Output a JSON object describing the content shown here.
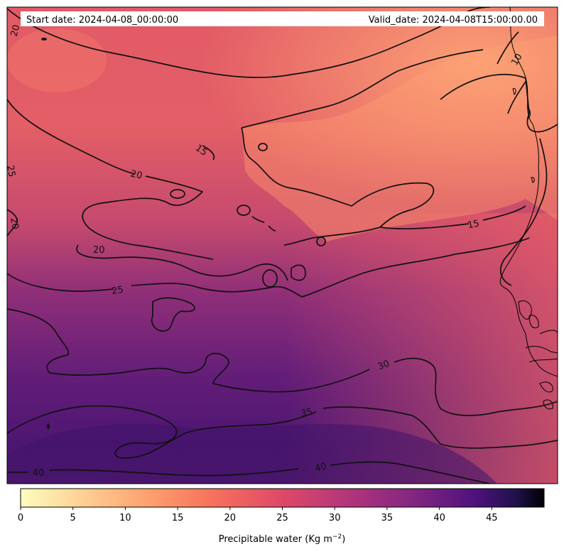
{
  "header": {
    "start_date": "Start date: 2024-04-08_00:00:00",
    "valid_date": "Valid_date: 2024-04-08T15:00:00.00"
  },
  "contour_labels": [
    "20",
    "25",
    "20",
    "20",
    "15",
    "10",
    "20",
    "15",
    "25",
    "30",
    "35",
    "40",
    "40"
  ],
  "colorbar": {
    "title": "Precipitable water (Kg m",
    "title_sup": "−2",
    "title_end": ")",
    "ticks": [
      "0",
      "5",
      "10",
      "15",
      "20",
      "25",
      "30",
      "35",
      "40",
      "45"
    ],
    "tick_values": [
      0,
      5,
      10,
      15,
      20,
      25,
      30,
      35,
      40,
      45
    ],
    "range": [
      0,
      50
    ],
    "colormap": "magma_r",
    "stops": [
      "#fcfdbf",
      "#fec488",
      "#fc8961",
      "#e55964",
      "#b73779",
      "#7e2482",
      "#51127c",
      "#1d1147",
      "#000004"
    ]
  },
  "field": {
    "variable": "Precipitable water",
    "contour_interval": 5,
    "palette": {
      "low": "#fb9d6f",
      "mid": "#e7596a",
      "high": "#4e1874"
    }
  }
}
